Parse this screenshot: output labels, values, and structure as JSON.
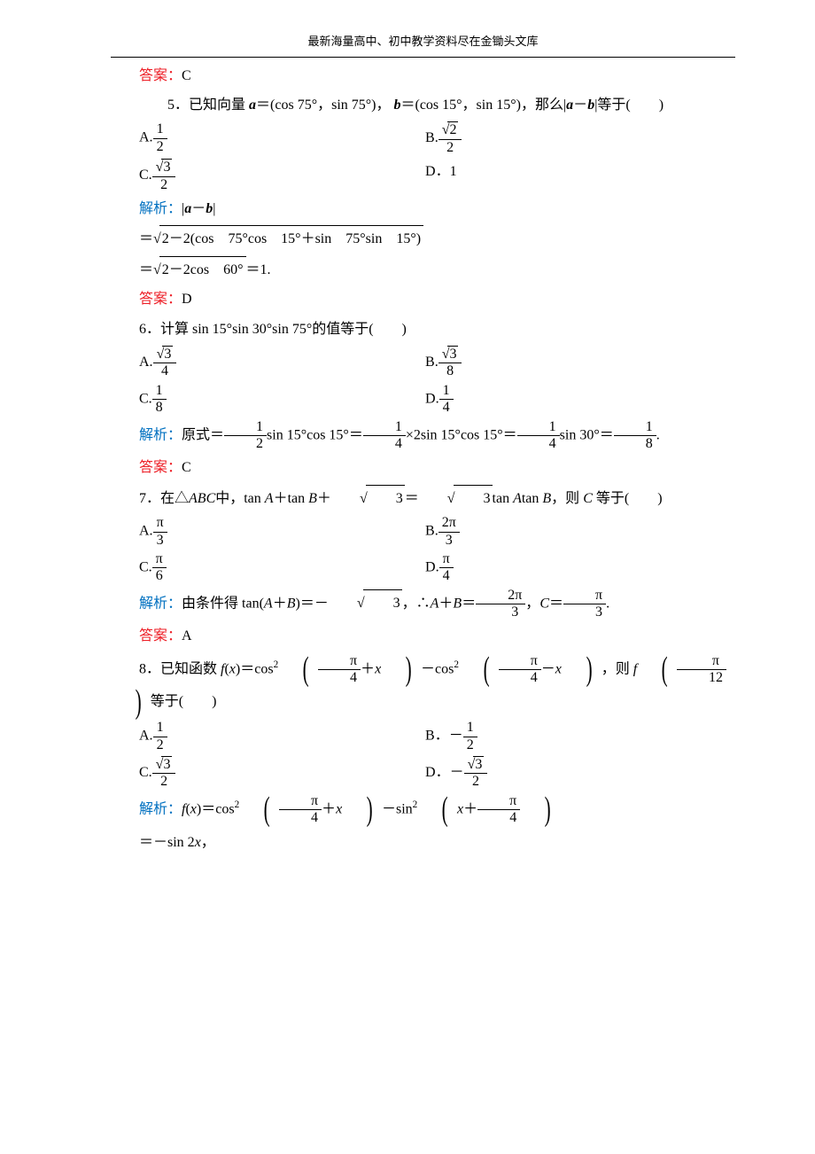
{
  "colors": {
    "answer": "#ed1c24",
    "analysis": "#0070c0",
    "text": "#000000",
    "background": "#ffffff"
  },
  "typography": {
    "body_font": "SimSun",
    "math_font": "Times New Roman",
    "body_fontsize": 16,
    "header_fontsize": 13,
    "line_height": 1.9
  },
  "header": "最新海量高中、初中教学资料尽在金锄头文库",
  "labels": {
    "answer": "答案：",
    "analysis": "解析："
  },
  "q4": {
    "answer": "C"
  },
  "q5": {
    "stem_prefix": "5．已知向量",
    "a_eq": "＝(cos 75°，sin 75°)，",
    "b_eq": "＝(cos 15°，sin 15°)，那么|",
    "stem_suffix": "|等于(　　)",
    "optA_prefix": "A.",
    "optA_num": "1",
    "optA_den": "2",
    "optB_prefix": "B.",
    "optB_num_sqrt": "2",
    "optB_den": "2",
    "optC_prefix": "C.",
    "optC_num_sqrt": "3",
    "optC_den": "2",
    "optD": "D．1",
    "analysis_line1": "|",
    "analysis_line1_suffix": "|",
    "line2_body": "2－2(cos　75°cos　15°＋sin　75°sin　15°)",
    "line3_body": "2－2cos　60°",
    "line3_suffix": "＝1.",
    "answer": "D"
  },
  "q6": {
    "stem": "6．计算 sin 15°sin 30°sin 75°的值等于(　　)",
    "optA_prefix": "A.",
    "optA_num_sqrt": "3",
    "optA_den": "4",
    "optB_prefix": "B.",
    "optB_num_sqrt": "3",
    "optB_den": "8",
    "optC_prefix": "C.",
    "optC_num": "1",
    "optC_den": "8",
    "optD_prefix": "D.",
    "optD_num": "1",
    "optD_den": "4",
    "analysis_text1": "原式＝",
    "f1_num": "1",
    "f1_den": "2",
    "t2": "sin 15°cos 15°＝",
    "f2_num": "1",
    "f2_den": "4",
    "t3": "×2sin 15°cos 15°＝",
    "f3_num": "1",
    "f3_den": "4",
    "t4": "sin 30°＝",
    "f4_num": "1",
    "f4_den": "8",
    "t5": ".",
    "answer": "C"
  },
  "q7": {
    "stem_prefix": "7．在△",
    "abc": "ABC",
    "stem_mid1": "中，tan ",
    "A": "A",
    "stem_mid2": "＋tan ",
    "B": "B",
    "stem_mid3": "＋",
    "sqrt3": "3",
    "stem_mid4": "＝",
    "stem_mid5": "tan ",
    "stem_mid6": "tan ",
    "stem_mid7": "，则 ",
    "C": "C",
    "stem_suffix": " 等于(　　)",
    "optA_prefix": "A.",
    "optA_num": "π",
    "optA_den": "3",
    "optB_prefix": "B.",
    "optB_num": "2π",
    "optB_den": "3",
    "optC_prefix": "C.",
    "optC_num": "π",
    "optC_den": "6",
    "optD_prefix": "D.",
    "optD_num": "π",
    "optD_den": "4",
    "analysis_t1": "由条件得 tan(",
    "analysis_t2": "＋",
    "analysis_t3": ")＝－",
    "analysis_t4": "，∴",
    "analysis_t5": "＋",
    "analysis_t6": "＝",
    "f1_num": "2π",
    "f1_den": "3",
    "analysis_t7": "，",
    "analysis_t8": "＝",
    "f2_num": "π",
    "f2_den": "3",
    "analysis_t9": ".",
    "answer": "A"
  },
  "q8": {
    "stem_prefix": "8．已知函数 ",
    "fx": "f",
    "open": "(",
    "x": "x",
    "close": ")",
    "eq1": "＝cos",
    "sq": "2",
    "pi4": "π",
    "four": "4",
    "plus_x": "＋",
    "minus": "－cos",
    "minus_x": "－",
    "then": "，则 ",
    "pi12_num": "π",
    "pi12_den": "12",
    "eqword": "等于(　　)",
    "optA_prefix": "A.",
    "optA_num": "1",
    "optA_den": "2",
    "optB_prefix": "B．－",
    "optB_num": "1",
    "optB_den": "2",
    "optC_prefix": "C.",
    "optC_num_sqrt": "3",
    "optC_den": "2",
    "optD_prefix": "D．－",
    "optD_num_sqrt": "3",
    "optD_den": "2",
    "analysis_t1": "＝cos",
    "analysis_t2": "－sin",
    "line2": "＝－sin 2",
    "line2_suffix": "，"
  }
}
